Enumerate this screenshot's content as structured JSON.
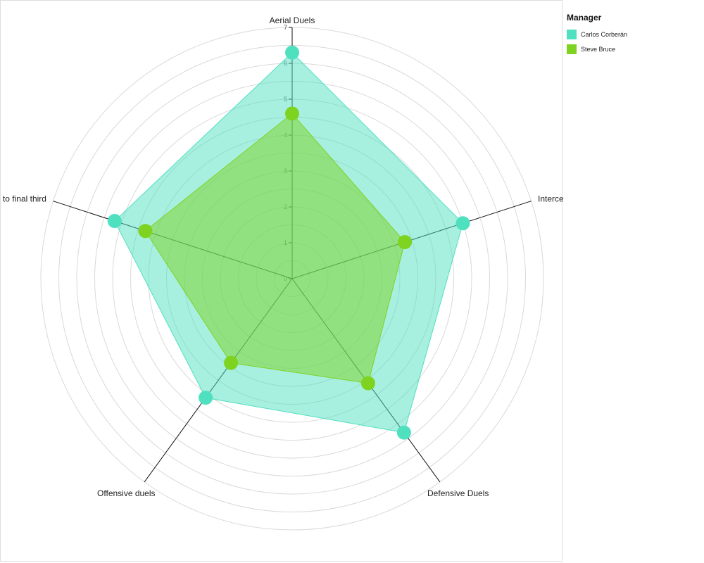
{
  "chart_data": {
    "type": "radar",
    "axes": [
      "Aerial Duels",
      "Interceptions",
      "Defensive Duels",
      "Offensive duels",
      "Passes to final third"
    ],
    "rticks": [
      0,
      1,
      2,
      3,
      4,
      5,
      6,
      7
    ],
    "rlim": [
      0,
      7
    ],
    "grid": true,
    "series": [
      {
        "name": "Carlos Corberán",
        "color": "#4fe0c0",
        "values": [
          6.3,
          5.0,
          5.3,
          4.1,
          5.2
        ]
      },
      {
        "name": "Steve Bruce",
        "color": "#7ed321",
        "values": [
          4.6,
          3.3,
          3.6,
          2.9,
          4.3
        ]
      }
    ],
    "legend": {
      "title": "Manager",
      "position": "right"
    }
  }
}
